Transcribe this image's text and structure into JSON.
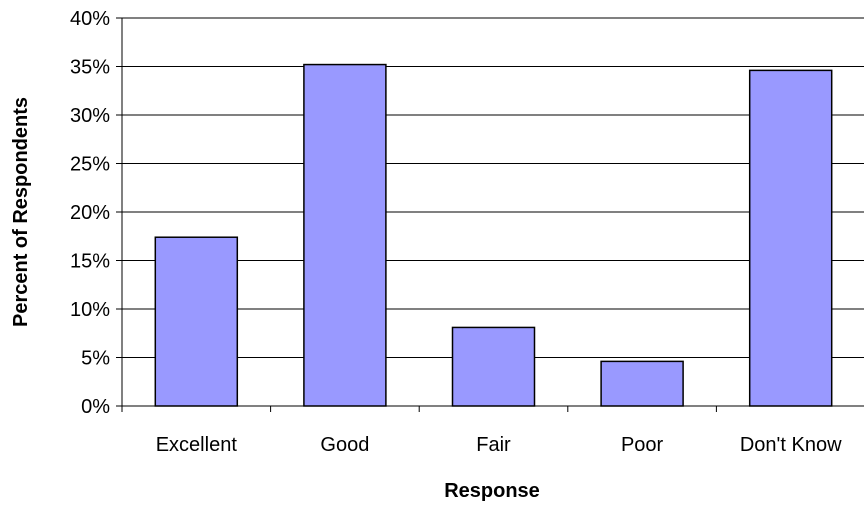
{
  "chart_data": {
    "type": "bar",
    "title": "",
    "xlabel": "Response",
    "ylabel": "Percent of Respondents",
    "categories": [
      "Excellent",
      "Good",
      "Fair",
      "Poor",
      "Don't Know"
    ],
    "values": [
      17.4,
      35.2,
      8.1,
      4.6,
      34.6
    ],
    "ylim": [
      0,
      40
    ],
    "yticks": [
      0,
      5,
      10,
      15,
      20,
      25,
      30,
      35,
      40
    ],
    "ytick_labels": [
      "0%",
      "5%",
      "10%",
      "15%",
      "20%",
      "25%",
      "30%",
      "35%",
      "40%"
    ],
    "grid": true,
    "legend": "none",
    "colors": {
      "bar_fill": "#9999ff",
      "bar_stroke": "#000000",
      "gridline": "#000000",
      "axis": "#000000",
      "text": "#000000"
    }
  }
}
